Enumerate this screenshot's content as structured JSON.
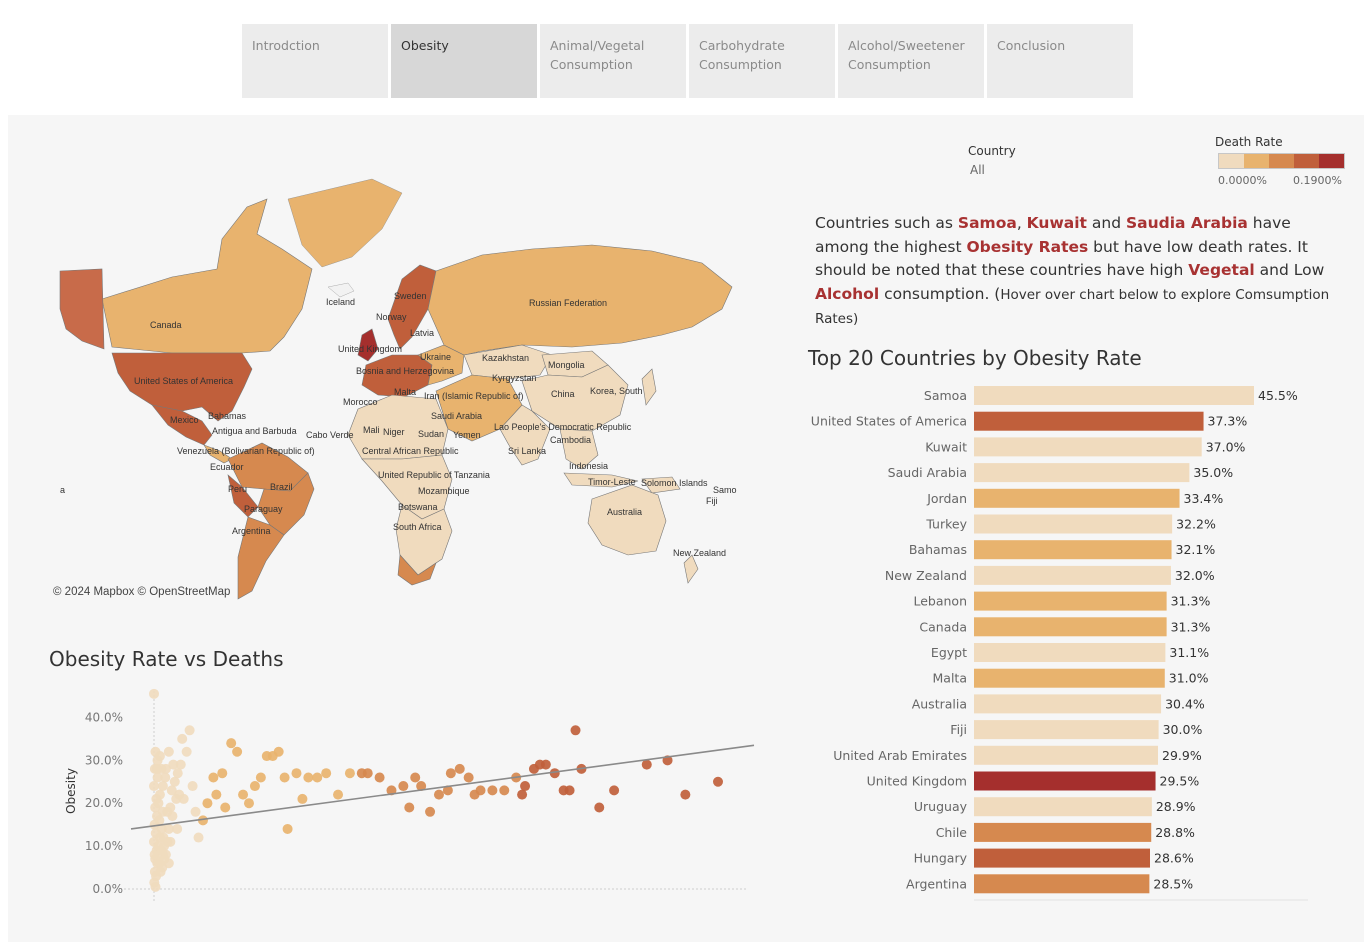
{
  "tabs": [
    {
      "label": "Introdction",
      "active": false
    },
    {
      "label": "Obesity",
      "active": true
    },
    {
      "label": "Animal/Vegetal Consumption",
      "active": false
    },
    {
      "label": "Carbohydrate Consumption",
      "active": false
    },
    {
      "label": "Alcohol/Sweetener Consumption",
      "active": false
    },
    {
      "label": "Conclusion",
      "active": false
    }
  ],
  "filter": {
    "title": "Country",
    "value": "All"
  },
  "legend": {
    "title": "Death Rate",
    "min_label": "0.0000%",
    "max_label": "0.1900%",
    "colors": [
      "#f0dbbe",
      "#e8b36e",
      "#d6894f",
      "#c05f3b",
      "#a52f2d"
    ]
  },
  "narrative": {
    "p1": "Countries such as ",
    "h1": "Samoa",
    "p2": ", ",
    "h2": "Kuwait",
    "p3": " and ",
    "h3": "Saudia Arabia",
    "p4": " have among the highest ",
    "h4": "Obesity Rates",
    "p5": " but have low death rates. It should be noted that these countries have high ",
    "h5": "Vegetal",
    "p6": " and Low ",
    "h6": "Alcohol",
    "p7": " consumption. (",
    "small": "Hover over chart below to explore Comsumption Rates)"
  },
  "map": {
    "attribution": "© 2024 Mapbox © OpenStreetMap",
    "labels": [
      "Canada",
      "United States of America",
      "Mexico",
      "Bahamas",
      "Antigua and Barbuda",
      "Cabo Verde",
      "Venezuela (Bolivarian Republic of)",
      "Ecuador",
      "Peru",
      "Brazil",
      "Paraguay",
      "Argentina",
      "Iceland",
      "Sweden",
      "Norway",
      "Latvia",
      "United Kingdom",
      "Ukraine",
      "Bosnia and Herzegovina",
      "Kazakhstan",
      "Russian Federation",
      "Mongolia",
      "Kyrgyzstan",
      "Morocco",
      "Malta",
      "Iran (Islamic Republic of)",
      "Saudi Arabia",
      "China",
      "Korea, South",
      "Mali",
      "Niger",
      "Sudan",
      "Yemen",
      "Lao People's Democratic Republic",
      "Cambodia",
      "Central African Republic",
      "Sri Lanka",
      "Indonesia",
      "United Republic of Tanzania",
      "Timor-Leste",
      "Solomon Islands",
      "Samo",
      "Fiji",
      "Mozambique",
      "Botswana",
      "South Africa",
      "Australia",
      "New Zealand",
      "a"
    ]
  },
  "bar_chart_data": {
    "type": "bar",
    "title": "Top 20 Countries by Obesity Rate",
    "categories": [
      "Samoa",
      "United States of America",
      "Kuwait",
      "Saudi Arabia",
      "Jordan",
      "Turkey",
      "Bahamas",
      "New Zealand",
      "Lebanon",
      "Canada",
      "Egypt",
      "Malta",
      "Australia",
      "Fiji",
      "United Arab Emirates",
      "United Kingdom",
      "Uruguay",
      "Chile",
      "Hungary",
      "Argentina"
    ],
    "values": [
      45.5,
      37.3,
      37.0,
      35.0,
      33.4,
      32.2,
      32.1,
      32.0,
      31.3,
      31.3,
      31.1,
      31.0,
      30.4,
      30.0,
      29.9,
      29.5,
      28.9,
      28.8,
      28.6,
      28.5
    ],
    "value_labels": [
      "45.5%",
      "37.3%",
      "37.0%",
      "35.0%",
      "33.4%",
      "32.2%",
      "32.1%",
      "32.0%",
      "31.3%",
      "31.3%",
      "31.1%",
      "31.0%",
      "30.4%",
      "30.0%",
      "29.9%",
      "29.5%",
      "28.9%",
      "28.8%",
      "28.6%",
      "28.5%"
    ],
    "colors": [
      "#f0dbbe",
      "#c05f3b",
      "#f0dbbe",
      "#f0dbbe",
      "#e8b36e",
      "#f0dbbe",
      "#e8b36e",
      "#f0dbbe",
      "#e8b36e",
      "#e8b36e",
      "#f0dbbe",
      "#e8b36e",
      "#f0dbbe",
      "#f0dbbe",
      "#f0dbbe",
      "#a52f2d",
      "#f0dbbe",
      "#d6894f",
      "#c05f3b",
      "#d6894f"
    ],
    "xlim": [
      0,
      50
    ]
  },
  "scatter_chart_data": {
    "type": "scatter",
    "title": "Obesity Rate vs Deaths",
    "ylabel": "Obesity",
    "ylim": [
      0,
      45
    ],
    "xlim": [
      0,
      0.19
    ],
    "y_ticks": [
      {
        "v": 0,
        "label": "0.0%"
      },
      {
        "v": 10,
        "label": "10.0%"
      },
      {
        "v": 20,
        "label": "20.0%"
      },
      {
        "v": 30,
        "label": "30.0%"
      },
      {
        "v": 40,
        "label": "40.0%"
      }
    ],
    "trend": {
      "y_at_xmin": 14.0,
      "y_at_xmax": 33.5
    },
    "points": [
      [
        0.0,
        45.5
      ],
      [
        0.0005,
        32
      ],
      [
        0.0012,
        30
      ],
      [
        0.0003,
        28
      ],
      [
        0.0,
        24
      ],
      [
        0.0008,
        21
      ],
      [
        0.0004,
        19
      ],
      [
        0.001,
        17
      ],
      [
        0.0002,
        15
      ],
      [
        0.0006,
        13
      ],
      [
        0.0,
        11
      ],
      [
        0.0009,
        9
      ],
      [
        0.0004,
        7
      ],
      [
        0.0011,
        6
      ],
      [
        0.0003,
        4
      ],
      [
        0.0007,
        3
      ],
      [
        0.0001,
        1.5
      ],
      [
        0.0005,
        0.5
      ],
      [
        0.0002,
        8
      ],
      [
        0.0015,
        10
      ],
      [
        0.002,
        12
      ],
      [
        0.0025,
        9
      ],
      [
        0.003,
        8
      ],
      [
        0.0035,
        7
      ],
      [
        0.0018,
        6
      ],
      [
        0.0022,
        4
      ],
      [
        0.0028,
        5
      ],
      [
        0.004,
        8
      ],
      [
        0.0045,
        11
      ],
      [
        0.005,
        14
      ],
      [
        0.0015,
        20
      ],
      [
        0.002,
        22
      ],
      [
        0.003,
        24
      ],
      [
        0.0038,
        26
      ],
      [
        0.0025,
        28
      ],
      [
        0.0055,
        19
      ],
      [
        0.006,
        23
      ],
      [
        0.007,
        25
      ],
      [
        0.0075,
        21
      ],
      [
        0.008,
        27
      ],
      [
        0.009,
        29
      ],
      [
        0.0095,
        35
      ],
      [
        0.011,
        32
      ],
      [
        0.012,
        37
      ],
      [
        0.013,
        24
      ],
      [
        0.014,
        18
      ],
      [
        0.015,
        12
      ],
      [
        0.0165,
        16
      ],
      [
        0.018,
        20
      ],
      [
        0.02,
        26
      ],
      [
        0.021,
        22
      ],
      [
        0.023,
        27
      ],
      [
        0.024,
        19
      ],
      [
        0.026,
        34
      ],
      [
        0.028,
        32
      ],
      [
        0.03,
        22
      ],
      [
        0.032,
        20
      ],
      [
        0.034,
        24
      ],
      [
        0.036,
        26
      ],
      [
        0.038,
        31
      ],
      [
        0.04,
        31
      ],
      [
        0.042,
        32
      ],
      [
        0.044,
        26
      ],
      [
        0.045,
        14
      ],
      [
        0.048,
        27
      ],
      [
        0.05,
        21
      ],
      [
        0.052,
        26
      ],
      [
        0.055,
        26
      ],
      [
        0.058,
        27
      ],
      [
        0.062,
        22
      ],
      [
        0.066,
        27
      ],
      [
        0.07,
        27
      ],
      [
        0.072,
        27
      ],
      [
        0.076,
        26
      ],
      [
        0.08,
        23
      ],
      [
        0.084,
        24
      ],
      [
        0.086,
        19
      ],
      [
        0.088,
        26
      ],
      [
        0.09,
        24
      ],
      [
        0.093,
        18
      ],
      [
        0.096,
        22
      ],
      [
        0.099,
        23
      ],
      [
        0.1,
        27
      ],
      [
        0.103,
        28
      ],
      [
        0.106,
        26
      ],
      [
        0.108,
        22
      ],
      [
        0.11,
        23
      ],
      [
        0.114,
        23
      ],
      [
        0.118,
        23
      ],
      [
        0.122,
        26
      ],
      [
        0.124,
        22
      ],
      [
        0.125,
        24
      ],
      [
        0.128,
        28
      ],
      [
        0.13,
        29
      ],
      [
        0.132,
        29
      ],
      [
        0.135,
        27
      ],
      [
        0.138,
        23
      ],
      [
        0.14,
        23
      ],
      [
        0.142,
        37
      ],
      [
        0.144,
        28
      ],
      [
        0.15,
        19
      ],
      [
        0.155,
        23
      ],
      [
        0.166,
        29
      ],
      [
        0.173,
        30
      ],
      [
        0.179,
        22
      ],
      [
        0.19,
        25
      ],
      [
        0.004,
        28
      ],
      [
        0.005,
        32
      ],
      [
        0.002,
        31
      ],
      [
        0.0065,
        29
      ],
      [
        0.0085,
        22
      ],
      [
        0.01,
        21
      ],
      [
        0.0012,
        26
      ],
      [
        0.0032,
        12
      ],
      [
        0.0045,
        18
      ],
      [
        0.0055,
        11
      ],
      [
        0.0078,
        14
      ],
      [
        0.0018,
        16
      ],
      [
        0.0026,
        14
      ],
      [
        0.0034,
        10
      ],
      [
        0.005,
        6
      ],
      [
        0.001,
        28
      ],
      [
        0.003,
        18
      ],
      [
        0.0062,
        17
      ]
    ]
  }
}
